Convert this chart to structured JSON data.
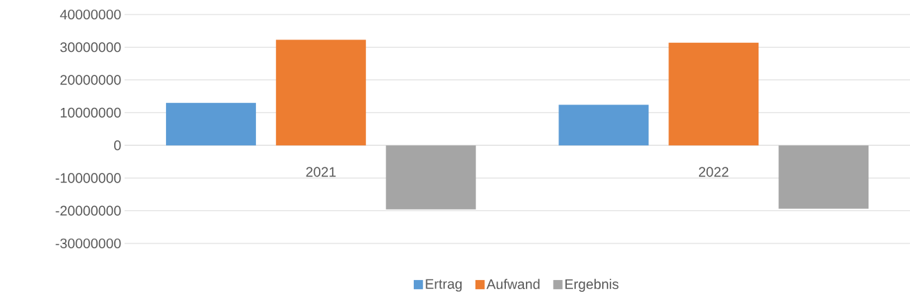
{
  "chart_data": {
    "type": "bar",
    "categories": [
      "2021",
      "2022"
    ],
    "series": [
      {
        "name": "Ertrag",
        "color": "#5b9bd5",
        "values": [
          13000000,
          12400000
        ]
      },
      {
        "name": "Aufwand",
        "color": "#ed7d31",
        "values": [
          32300000,
          31400000
        ]
      },
      {
        "name": "Ergebnis",
        "color": "#a5a5a5",
        "values": [
          -19600000,
          -19400000
        ]
      }
    ],
    "ylim": [
      -30000000,
      40000000
    ],
    "yticks": [
      -30000000,
      -20000000,
      -10000000,
      0,
      10000000,
      20000000,
      30000000,
      40000000
    ],
    "grid": "y",
    "legend": "bottom"
  }
}
